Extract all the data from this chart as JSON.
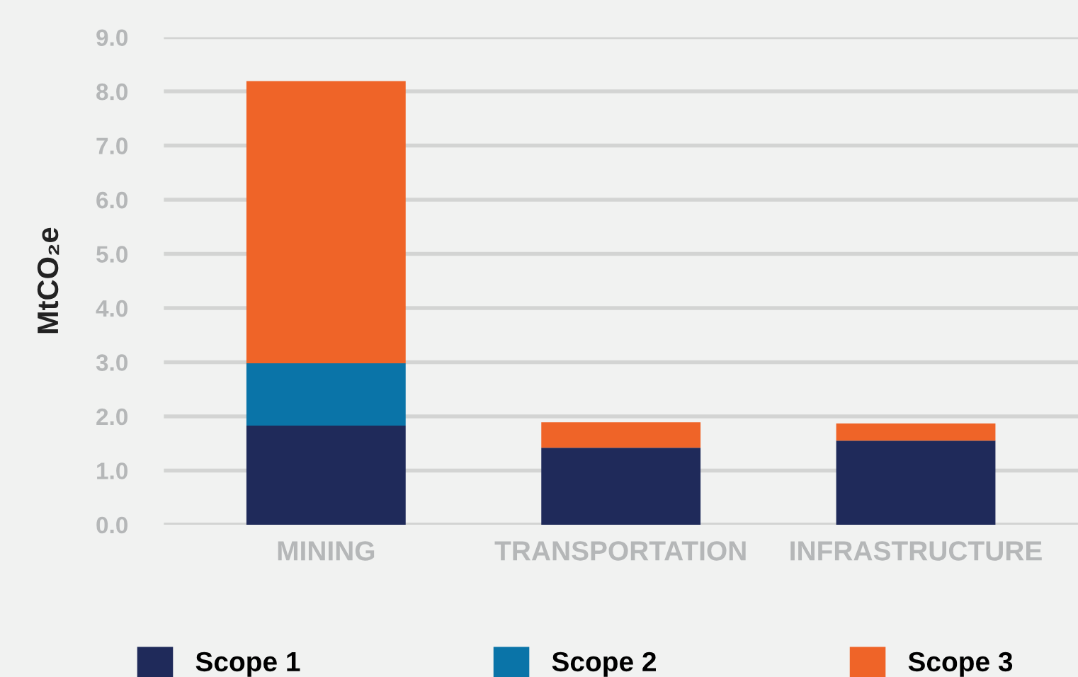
{
  "chart_data": {
    "type": "bar",
    "stacked": true,
    "ylabel": "MtCO₂e",
    "categories": [
      "MINING",
      "TRANSPORTATION",
      "INFRASTRUCTURE"
    ],
    "series": [
      {
        "name": "Scope 1",
        "color": "#1f2a5a",
        "values": [
          1.83,
          1.42,
          1.55
        ]
      },
      {
        "name": "Scope 2",
        "color": "#0a74a8",
        "values": [
          1.15,
          0,
          0
        ]
      },
      {
        "name": "Scope 3",
        "color": "#ef6428",
        "values": [
          5.21,
          0.47,
          0.32
        ]
      }
    ],
    "ylim": [
      0,
      9
    ],
    "yticks": [
      {
        "value": 0,
        "label": "0.0"
      },
      {
        "value": 1,
        "label": "1.0"
      },
      {
        "value": 2,
        "label": "2.0"
      },
      {
        "value": 3,
        "label": "3.0"
      },
      {
        "value": 4,
        "label": "4.0"
      },
      {
        "value": 5,
        "label": "5.0"
      },
      {
        "value": 6,
        "label": "6.0"
      },
      {
        "value": 7,
        "label": "7.0"
      },
      {
        "value": 8,
        "label": "8.0"
      },
      {
        "value": 9,
        "label": "9.0"
      }
    ],
    "grid": "y",
    "legend": "bottom"
  }
}
